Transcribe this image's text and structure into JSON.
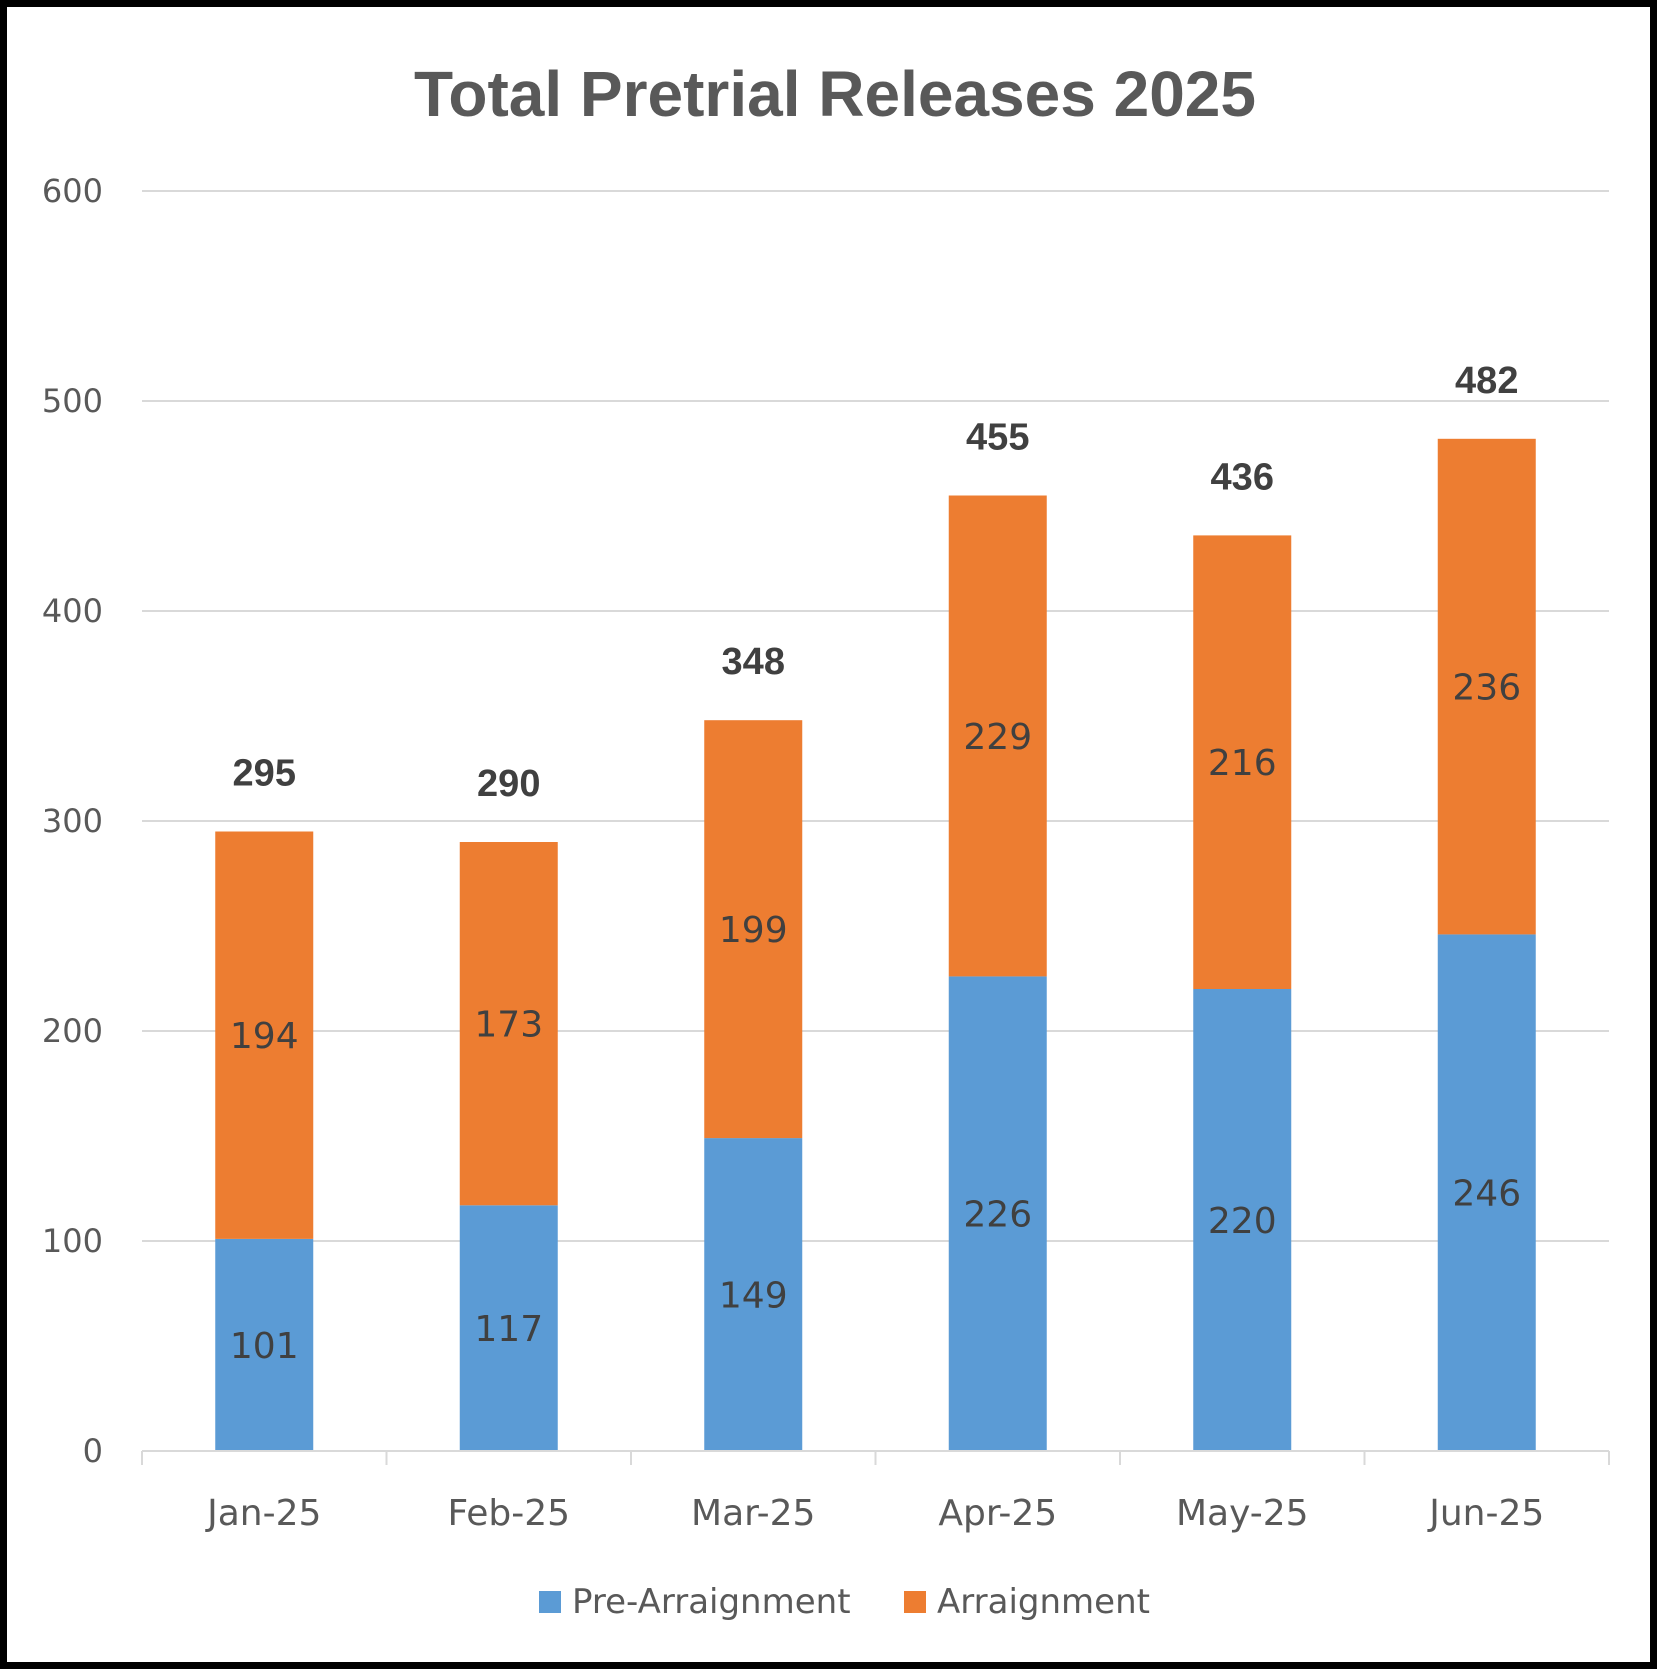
{
  "chart_data": {
    "type": "bar",
    "stacked": true,
    "title": "Total Pretrial Releases 2025",
    "xlabel": "",
    "ylabel": "",
    "ylim": [
      0,
      600
    ],
    "yticks": [
      "0",
      "100",
      "200",
      "300",
      "400",
      "500",
      "600"
    ],
    "grid": true,
    "legend_position": "bottom",
    "categories": [
      "Jan-25",
      "Feb-25",
      "Mar-25",
      "Apr-25",
      "May-25",
      "Jun-25"
    ],
    "series": [
      {
        "name": "Pre-Arraignment",
        "color": "#5B9BD5",
        "values": [
          101,
          117,
          149,
          226,
          220,
          246
        ]
      },
      {
        "name": "Arraignment",
        "color": "#ED7D31",
        "values": [
          194,
          173,
          199,
          229,
          216,
          236
        ]
      }
    ],
    "totals": [
      295,
      290,
      348,
      455,
      436,
      482
    ]
  }
}
